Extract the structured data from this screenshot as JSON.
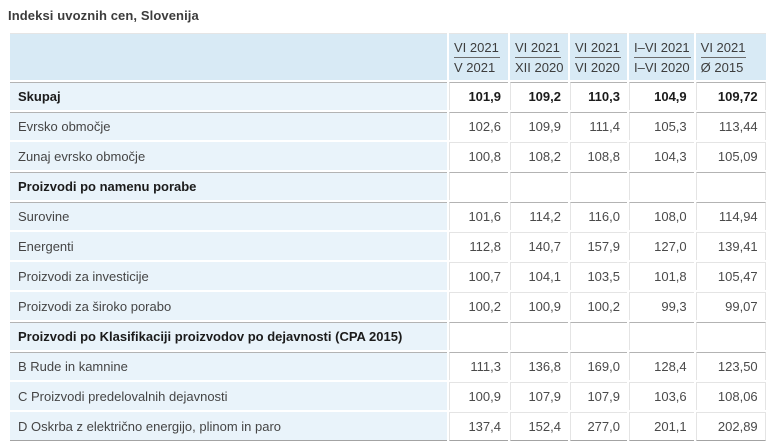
{
  "title": "Indeksi uvoznih cen, Slovenija",
  "colors": {
    "header_bg": "#d8eaf5",
    "stub_bg": "#e9f3fa",
    "grid_border": "#e4e4e4",
    "rule_border": "#b3b3b3",
    "bottom_border": "#a3a3a3",
    "text": "#454545",
    "bold_text": "#1b1b1b"
  },
  "table": {
    "columns": [
      {
        "top": "VI 2021",
        "bottom": "V 2021"
      },
      {
        "top": "VI 2021",
        "bottom": "XII 2020"
      },
      {
        "top": "VI 2021",
        "bottom": "VI 2020"
      },
      {
        "top": "I–VI 2021",
        "bottom": "I–VI 2020"
      },
      {
        "top": "VI 2021",
        "bottom": "Ø 2015"
      }
    ],
    "rows": [
      {
        "label": "Skupaj",
        "bold": true,
        "section": false,
        "values": [
          "101,9",
          "109,2",
          "110,3",
          "104,9",
          "109,72"
        ]
      },
      {
        "label": "Evrsko območje",
        "bold": false,
        "section": false,
        "values": [
          "102,6",
          "109,9",
          "111,4",
          "105,3",
          "113,44"
        ]
      },
      {
        "label": "Zunaj evrsko območje",
        "bold": false,
        "section": false,
        "values": [
          "100,8",
          "108,2",
          "108,8",
          "104,3",
          "105,09"
        ]
      },
      {
        "label": "Proizvodi po namenu porabe",
        "bold": true,
        "section": true,
        "values": [
          "",
          "",
          "",
          "",
          ""
        ]
      },
      {
        "label": "Surovine",
        "bold": false,
        "section": false,
        "values": [
          "101,6",
          "114,2",
          "116,0",
          "108,0",
          "114,94"
        ]
      },
      {
        "label": "Energenti",
        "bold": false,
        "section": false,
        "values": [
          "112,8",
          "140,7",
          "157,9",
          "127,0",
          "139,41"
        ]
      },
      {
        "label": "Proizvodi za investicije",
        "bold": false,
        "section": false,
        "values": [
          "100,7",
          "104,1",
          "103,5",
          "101,8",
          "105,47"
        ]
      },
      {
        "label": "Proizvodi za široko porabo",
        "bold": false,
        "section": false,
        "values": [
          "100,2",
          "100,9",
          "100,2",
          "99,3",
          "99,07"
        ]
      },
      {
        "label": "Proizvodi po Klasifikaciji proizvodov po dejavnosti (CPA 2015)",
        "bold": true,
        "section": true,
        "values": [
          "",
          "",
          "",
          "",
          ""
        ]
      },
      {
        "label": "B Rude in kamnine",
        "bold": false,
        "section": false,
        "values": [
          "111,3",
          "136,8",
          "169,0",
          "128,4",
          "123,50"
        ]
      },
      {
        "label": "C Proizvodi predelovalnih dejavnosti",
        "bold": false,
        "section": false,
        "values": [
          "100,9",
          "107,9",
          "107,9",
          "103,6",
          "108,06"
        ]
      },
      {
        "label": "D Oskrba z električno energijo, plinom in paro",
        "bold": false,
        "section": false,
        "values": [
          "137,4",
          "152,4",
          "277,0",
          "201,1",
          "202,89"
        ]
      }
    ]
  }
}
